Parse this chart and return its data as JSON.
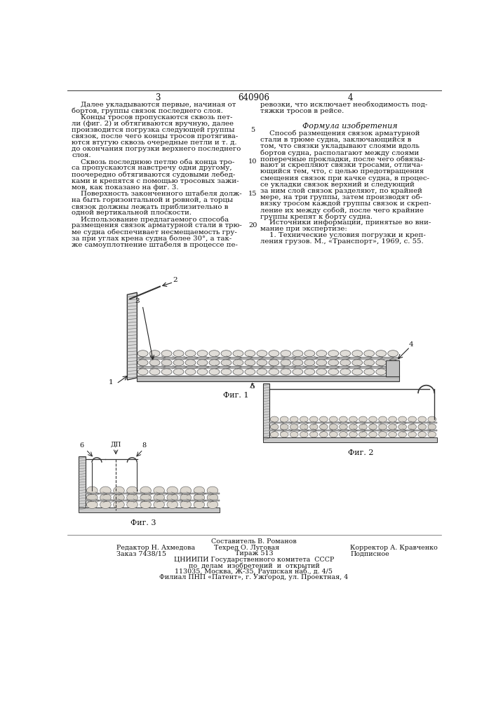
{
  "page_number_center": "640906",
  "page_number_left": "3",
  "page_number_right": "4",
  "background_color": "#ffffff",
  "left_column_text": [
    "    Далее укладываются первые, начиная от",
    "бортов, группы связок последнего слоя.",
    "    Концы тросов пропускаются сквозь пет-",
    "ли (фиг. 2) и обтягиваются вручную, далее",
    "производится погрузка следующей группы",
    "связок, после чего концы тросов протягива-",
    "ются втугую сквозь очередные петли и т. д.",
    "до окончания погрузки верхнего последнего",
    "слоя.",
    "    Сквозь последнюю петлю оба конца тро-",
    "са пропускаются навстречу одни другому,",
    "поочередно обтягиваются судовыми лебед-",
    "ками и крепятся с помощью тросовых зажи-",
    "мов, как показано на фиг. 3.",
    "    Поверхность законченного штабеля долж-",
    "на быть горизонтальной и ровной, а торцы",
    "связок должны лежать приблизительно в",
    "одной вертикальной плоскости.",
    "    Использование предлагаемого способа",
    "размещения связок арматурной стали в трю-",
    "ме судна обеспечивает несмещаемость гру-",
    "за при углах крена судна более 30°, а так-",
    "же самоуплотнение штабеля в процессе пе-"
  ],
  "right_column_text_top": [
    "ревозки, что исключает необходимость под-",
    "тяжки тросов в рейсе."
  ],
  "formula_title": "Формула изобретения",
  "right_column_formula": [
    "    Способ размещения связок арматурной",
    "стали в трюме судна, заключающийся в",
    "том, что связки укладывают слоями вдоль",
    "бортов судна, располагают между слоями",
    "поперечные прокладки, после чего обвязы-",
    "вают и скрепляют связки тросами, отлича-",
    "ющийся тем, что, с целью предотвращения",
    "смещения связок при качке судна, в процес-",
    "се укладки связок верхний и следующий",
    "за ним слой связок разделяют, по крайней",
    "мере, на три группы, затем производят об-",
    "вязку тросом каждой группы связок и скреп-",
    "ление их между собой, после чего крайние",
    "группы крепят к борту судна.",
    "    Источники информации, принятые во вни-",
    "мание при экспертизе:",
    "    1. Технические условия погрузки и креп-",
    "ления грузов. М., «Транспорт», 1969, с. 55."
  ],
  "fig1_caption": "Фиг. 1",
  "fig2_caption": "Фиг. 2",
  "fig3_caption": "Фиг. 3",
  "footer_line1_left": "Редактор Н. Ахмедова",
  "footer_line1_center": "Составитель В. Романов",
  "footer_line2_left": "Заказ 7438/15",
  "footer_line2_center": "Техред О. Луговая",
  "footer_line2_right": "Корректор А. Кравченко",
  "footer_line3_left": "Заказ 7438/15",
  "footer_line3_center": "Тираж 513",
  "footer_line3_right": "Подписное",
  "footer_line4": "ЦНИИПИ Государственного комитета  СССР",
  "footer_line5": "по  делам  изобретений  и  открытий",
  "footer_line6": "113035, Москва, Ж-35, Раушская наб., д. 4/5",
  "footer_line7": "Филиал ПНП «Патент», г. Ужгород, ул. Проектная, 4"
}
